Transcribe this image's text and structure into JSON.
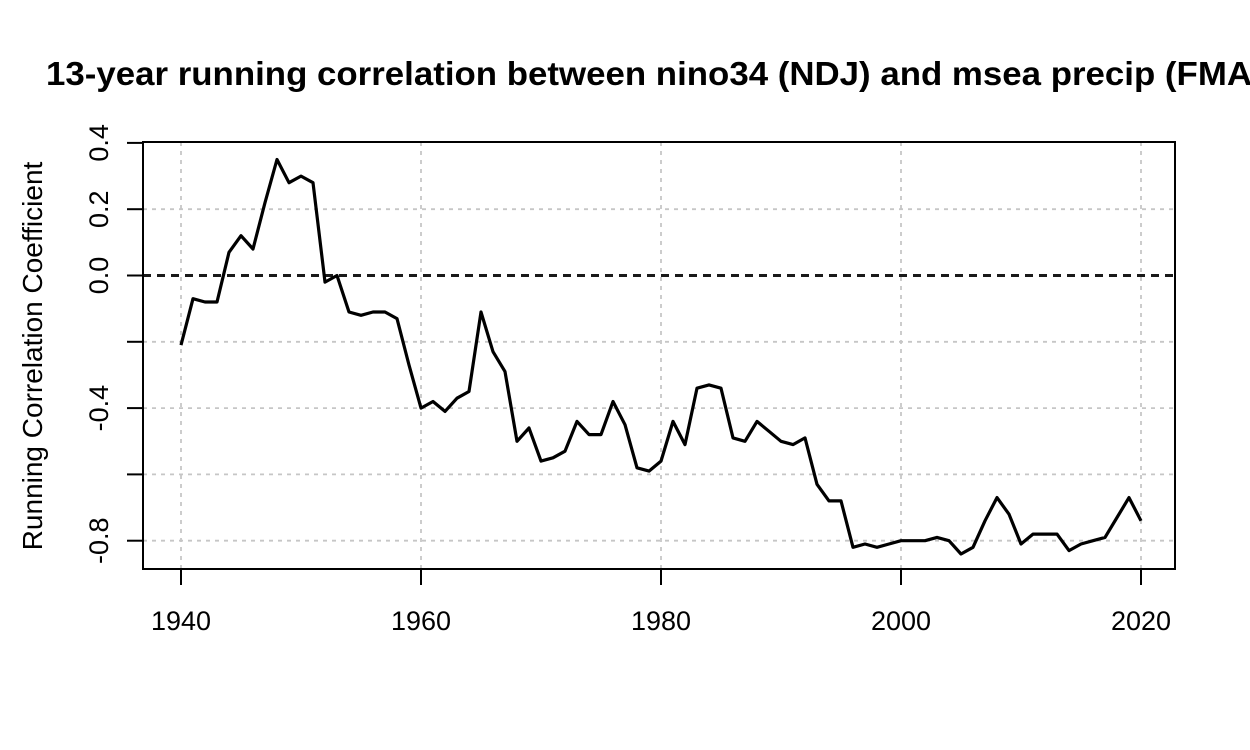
{
  "chart_data": {
    "type": "line",
    "title": "13-year running correlation between nino34 (NDJ) and msea precip (FMA",
    "title_note": "title clipped at right edge of image",
    "ylabel": "Running Correlation Coefficient",
    "xlabel": "",
    "grid": true,
    "legend_position": "none",
    "zero_reference_line": 0.0,
    "xlim": [
      1936.8,
      2022.9
    ],
    "ylim": [
      -0.89,
      0.4
    ],
    "x_ticks": [
      1940,
      1960,
      1980,
      2000,
      2020
    ],
    "x_tick_labels": [
      "1940",
      "1960",
      "1980",
      "2000",
      "2020"
    ],
    "y_ticks": [
      {
        "value": 0.4,
        "label": "0.4"
      },
      {
        "value": 0.2,
        "label": "0.2"
      },
      {
        "value": 0.0,
        "label": "0.0"
      },
      {
        "value": -0.2,
        "label": ""
      },
      {
        "value": -0.4,
        "label": "-0.4"
      },
      {
        "value": -0.6,
        "label": ""
      },
      {
        "value": -0.8,
        "label": "-0.8"
      }
    ],
    "years": [
      1940,
      1941,
      1942,
      1943,
      1944,
      1945,
      1946,
      1947,
      1948,
      1949,
      1950,
      1951,
      1952,
      1953,
      1954,
      1955,
      1956,
      1957,
      1958,
      1959,
      1960,
      1961,
      1962,
      1963,
      1964,
      1965,
      1966,
      1967,
      1968,
      1969,
      1970,
      1971,
      1972,
      1973,
      1974,
      1975,
      1976,
      1977,
      1978,
      1979,
      1980,
      1981,
      1982,
      1983,
      1984,
      1985,
      1986,
      1987,
      1988,
      1989,
      1990,
      1991,
      1992,
      1993,
      1994,
      1995,
      1996,
      1997,
      1998,
      1999,
      2000,
      2001,
      2002,
      2003,
      2004,
      2005,
      2006,
      2007,
      2008,
      2009,
      2010,
      2011,
      2012,
      2013,
      2014,
      2015,
      2016,
      2017,
      2018,
      2019,
      2020
    ],
    "values": [
      -0.21,
      -0.07,
      -0.08,
      -0.08,
      0.07,
      0.12,
      0.08,
      0.22,
      0.35,
      0.28,
      0.3,
      0.28,
      -0.02,
      0.0,
      -0.11,
      -0.12,
      -0.11,
      -0.11,
      -0.13,
      -0.27,
      -0.4,
      -0.38,
      -0.41,
      -0.37,
      -0.35,
      -0.11,
      -0.23,
      -0.29,
      -0.5,
      -0.46,
      -0.56,
      -0.55,
      -0.53,
      -0.44,
      -0.48,
      -0.48,
      -0.38,
      -0.45,
      -0.58,
      -0.59,
      -0.56,
      -0.44,
      -0.51,
      -0.34,
      -0.33,
      -0.34,
      -0.49,
      -0.5,
      -0.44,
      -0.47,
      -0.5,
      -0.51,
      -0.49,
      -0.63,
      -0.68,
      -0.68,
      -0.82,
      -0.81,
      -0.82,
      -0.81,
      -0.8,
      -0.8,
      -0.8,
      -0.79,
      -0.8,
      -0.84,
      -0.82,
      -0.74,
      -0.67,
      -0.72,
      -0.81,
      -0.78,
      -0.78,
      -0.78,
      -0.83,
      -0.81,
      -0.8,
      -0.79,
      -0.73,
      -0.67,
      -0.74
    ]
  },
  "colors": {
    "background": "#ffffff",
    "line": "#000000",
    "grid": "#c6c6c6",
    "zero_line": "#1a1a1a",
    "text": "#000000"
  }
}
